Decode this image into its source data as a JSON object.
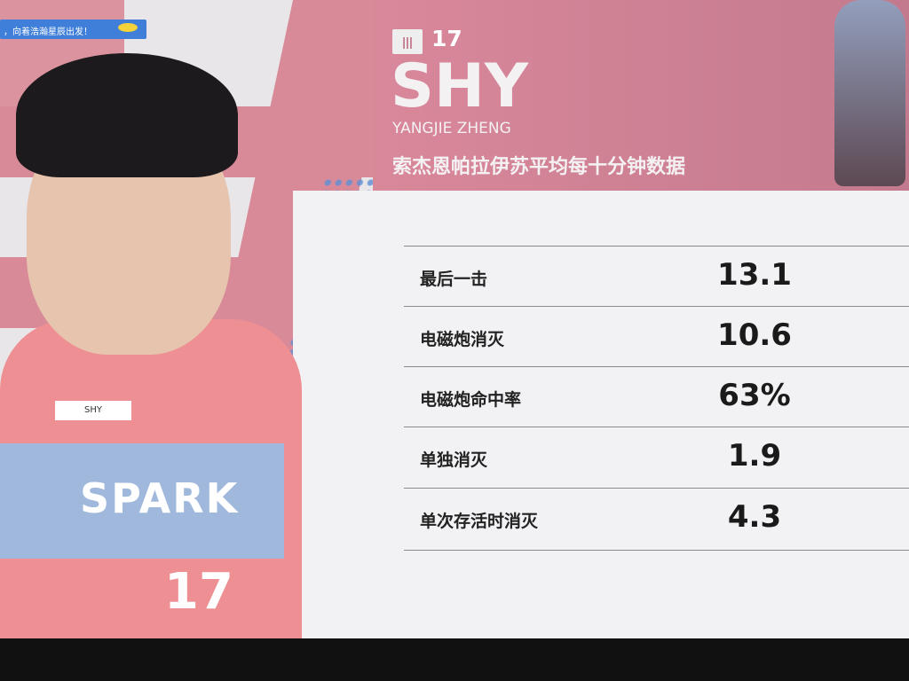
{
  "ticker": {
    "text": "，向着浩瀚星辰出发！"
  },
  "player": {
    "jersey_number": "17",
    "handle": "SHY",
    "real_name": "YANGJIE ZHENG",
    "subtitle": "索杰恩帕拉伊苏平均每十分钟数据",
    "role_icon": "damage-role-icon",
    "shirt_tag": "SHY",
    "shirt_team": "SPARK",
    "shirt_number": "17"
  },
  "stats": [
    {
      "label": "最后一击",
      "value": "13.1"
    },
    {
      "label": "电磁炮消灭",
      "value": "10.6"
    },
    {
      "label": "电磁炮命中率",
      "value": "63%"
    },
    {
      "label": "单独消灭",
      "value": "1.9"
    },
    {
      "label": "单次存活时消灭",
      "value": "4.3"
    }
  ],
  "colors": {
    "pink": "#d98a98",
    "blue": "#3f7fd9",
    "panel": "#f2f1f3"
  }
}
